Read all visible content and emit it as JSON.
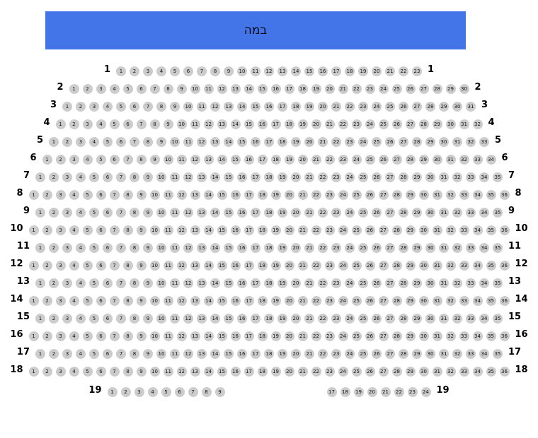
{
  "stage": {
    "label": "במה",
    "background_color": "#4375e8",
    "text_color": "#0a0a14"
  },
  "colors": {
    "seat_fill": "#cccccc",
    "seat_text": "#111111",
    "row_label": "#000000",
    "page_background": "#ffffff"
  },
  "rows": [
    {
      "label": "1",
      "groups": [
        [
          1,
          2,
          3,
          4,
          5,
          6,
          7,
          8,
          9,
          10,
          11,
          12,
          13,
          14,
          15,
          16,
          17,
          18,
          19,
          20,
          21,
          22,
          23
        ]
      ]
    },
    {
      "label": "2",
      "groups": [
        [
          1,
          2,
          3,
          4,
          5,
          6,
          7,
          8,
          9,
          10,
          11,
          12,
          13,
          14,
          15,
          16,
          17,
          18,
          19,
          20,
          21,
          22,
          23,
          24,
          25,
          26,
          27,
          28,
          29,
          30
        ]
      ]
    },
    {
      "label": "3",
      "groups": [
        [
          1,
          2,
          3,
          4,
          5,
          6,
          7,
          8,
          9,
          10,
          11,
          12,
          13,
          14,
          15,
          16,
          17,
          18,
          19,
          20,
          21,
          22,
          23,
          24,
          25,
          26,
          27,
          28,
          29,
          30,
          31
        ]
      ]
    },
    {
      "label": "4",
      "groups": [
        [
          1,
          2,
          3,
          4,
          5,
          6,
          7,
          8,
          9,
          10,
          11,
          12,
          13,
          14,
          15,
          16,
          17,
          18,
          19,
          20,
          21,
          22,
          23,
          24,
          25,
          26,
          27,
          28,
          29,
          30,
          31,
          32
        ]
      ]
    },
    {
      "label": "5",
      "groups": [
        [
          1,
          2,
          3,
          4,
          5,
          6,
          7,
          8,
          9,
          10,
          11,
          12,
          13,
          14,
          15,
          16,
          17,
          18,
          19,
          20,
          21,
          22,
          23,
          24,
          25,
          26,
          27,
          28,
          29,
          30,
          31,
          32,
          33
        ]
      ]
    },
    {
      "label": "6",
      "groups": [
        [
          1,
          2,
          3,
          4,
          5,
          6,
          7,
          8,
          9,
          10,
          11,
          12,
          13,
          14,
          15,
          16,
          17,
          18,
          19,
          20,
          21,
          22,
          23,
          24,
          25,
          26,
          27,
          28,
          29,
          30,
          31,
          32,
          33,
          34
        ]
      ]
    },
    {
      "label": "7",
      "groups": [
        [
          1,
          2,
          3,
          4,
          5,
          6,
          7,
          8,
          9,
          10,
          11,
          12,
          13,
          14,
          15,
          16,
          17,
          18,
          19,
          20,
          21,
          22,
          23,
          24,
          25,
          26,
          27,
          28,
          29,
          30,
          31,
          32,
          33,
          34,
          35
        ]
      ]
    },
    {
      "label": "8",
      "groups": [
        [
          1,
          2,
          3,
          4,
          5,
          6,
          7,
          8,
          9,
          10,
          11,
          12,
          13,
          14,
          15,
          16,
          17,
          18,
          19,
          20,
          21,
          22,
          23,
          24,
          25,
          26,
          27,
          28,
          29,
          30,
          31,
          32,
          33,
          34,
          35,
          36
        ]
      ]
    },
    {
      "label": "9",
      "groups": [
        [
          1,
          2,
          3,
          4,
          5,
          6,
          7,
          8,
          9,
          10,
          11,
          12,
          13,
          14,
          15,
          16,
          17,
          18,
          19,
          20,
          21,
          22,
          23,
          24,
          25,
          26,
          27,
          28,
          29,
          30,
          31,
          32,
          33,
          34,
          35
        ]
      ]
    },
    {
      "label": "10",
      "groups": [
        [
          1,
          2,
          3,
          4,
          5,
          6,
          7,
          8,
          9,
          10,
          11,
          12,
          13,
          14,
          15,
          16,
          17,
          18,
          19,
          20,
          21,
          22,
          23,
          24,
          25,
          26,
          27,
          28,
          29,
          30,
          31,
          32,
          33,
          34,
          35,
          36
        ]
      ]
    },
    {
      "label": "11",
      "groups": [
        [
          1,
          2,
          3,
          4,
          5,
          6,
          7,
          8,
          9,
          10,
          11,
          12,
          13,
          14,
          15,
          16,
          17,
          18,
          19,
          20,
          21,
          22,
          23,
          24,
          25,
          26,
          27,
          28,
          29,
          30,
          31,
          32,
          33,
          34,
          35
        ]
      ]
    },
    {
      "label": "12",
      "groups": [
        [
          1,
          2,
          3,
          4,
          5,
          6,
          7,
          8,
          9,
          10,
          11,
          12,
          13,
          14,
          15,
          16,
          17,
          18,
          19,
          20,
          21,
          22,
          23,
          24,
          25,
          26,
          27,
          28,
          29,
          30,
          31,
          32,
          33,
          34,
          35,
          36
        ]
      ]
    },
    {
      "label": "13",
      "groups": [
        [
          1,
          2,
          3,
          4,
          5,
          6,
          7,
          8,
          9,
          10,
          11,
          12,
          13,
          14,
          15,
          16,
          17,
          18,
          19,
          20,
          21,
          22,
          23,
          24,
          25,
          26,
          27,
          28,
          29,
          30,
          31,
          32,
          33,
          34,
          35
        ]
      ]
    },
    {
      "label": "14",
      "groups": [
        [
          1,
          2,
          3,
          4,
          5,
          6,
          7,
          8,
          9,
          10,
          11,
          12,
          13,
          14,
          15,
          16,
          17,
          18,
          19,
          20,
          21,
          22,
          23,
          24,
          25,
          26,
          27,
          28,
          29,
          30,
          31,
          32,
          33,
          34,
          35,
          36
        ]
      ]
    },
    {
      "label": "15",
      "groups": [
        [
          1,
          2,
          3,
          4,
          5,
          6,
          7,
          8,
          9,
          10,
          11,
          12,
          13,
          14,
          15,
          16,
          17,
          18,
          19,
          20,
          21,
          22,
          23,
          24,
          25,
          26,
          27,
          28,
          29,
          30,
          31,
          32,
          33,
          34,
          35
        ]
      ]
    },
    {
      "label": "16",
      "groups": [
        [
          1,
          2,
          3,
          4,
          5,
          6,
          7,
          8,
          9,
          10,
          11,
          12,
          13,
          14,
          15,
          16,
          17,
          18,
          19,
          20,
          21,
          22,
          23,
          24,
          25,
          26,
          27,
          28,
          29,
          30,
          31,
          32,
          33,
          34,
          35,
          36
        ]
      ]
    },
    {
      "label": "17",
      "groups": [
        [
          1,
          2,
          3,
          4,
          5,
          6,
          7,
          8,
          9,
          10,
          11,
          12,
          13,
          14,
          15,
          16,
          17,
          18,
          19,
          20,
          21,
          22,
          23,
          24,
          25,
          26,
          27,
          28,
          29,
          30,
          31,
          32,
          33,
          34,
          35
        ]
      ]
    },
    {
      "label": "18",
      "groups": [
        [
          1,
          2,
          3,
          4,
          5,
          6,
          7,
          8,
          9,
          10,
          11,
          12,
          13,
          14,
          15,
          16,
          17,
          18,
          19,
          20,
          21,
          22,
          23,
          24,
          25,
          26,
          27,
          28,
          29,
          30,
          31,
          32,
          33,
          34,
          35,
          36
        ]
      ]
    },
    {
      "label": "19",
      "groups": [
        [
          1,
          2,
          3,
          4,
          5,
          6,
          7,
          8,
          9
        ],
        [
          17,
          18,
          19,
          20,
          21,
          22,
          23,
          24
        ]
      ]
    }
  ]
}
